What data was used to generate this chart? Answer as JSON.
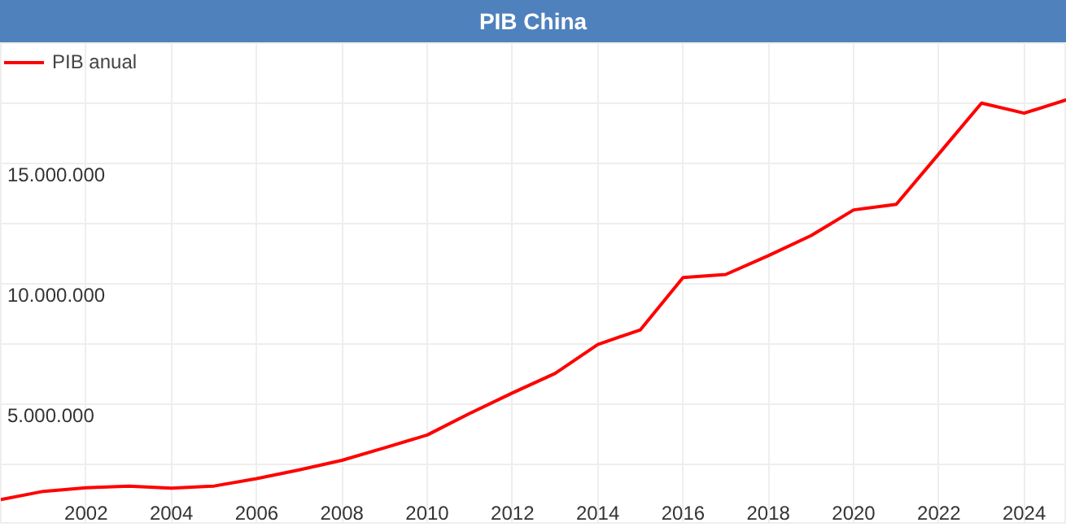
{
  "chart_data": {
    "type": "line",
    "title": "PIB China",
    "x": [
      2000,
      2001,
      2002,
      2003,
      2004,
      2005,
      2006,
      2007,
      2008,
      2009,
      2010,
      2011,
      2012,
      2013,
      2014,
      2015,
      2016,
      2017,
      2018,
      2019,
      2020,
      2021,
      2022,
      2023,
      2024,
      2025
    ],
    "series": [
      {
        "name": "PIB anual",
        "color": "#ff0000",
        "values": [
          1040000,
          1380000,
          1530000,
          1600000,
          1510000,
          1600000,
          1910000,
          2270000,
          2670000,
          3190000,
          3720000,
          4620000,
          5470000,
          6280000,
          7480000,
          8090000,
          10260000,
          10390000,
          11170000,
          12000000,
          13070000,
          13300000,
          15400000,
          17510000,
          17090000,
          17650000
        ]
      }
    ],
    "xlim": [
      2000,
      2025
    ],
    "ylim": [
      0,
      20000000
    ],
    "xticks": [
      2002,
      2004,
      2006,
      2008,
      2010,
      2012,
      2014,
      2016,
      2018,
      2020,
      2022,
      2024
    ],
    "yticks": [
      {
        "value": 2500000,
        "label": null
      },
      {
        "value": 5000000,
        "label": "5.000.000"
      },
      {
        "value": 7500000,
        "label": null
      },
      {
        "value": 10000000,
        "label": "10.000.000"
      },
      {
        "value": 12500000,
        "label": null
      },
      {
        "value": 15000000,
        "label": "15.000.000"
      },
      {
        "value": 17500000,
        "label": null
      }
    ],
    "grid": true,
    "legend": "top left",
    "marker": "none",
    "line_style": "solid"
  }
}
